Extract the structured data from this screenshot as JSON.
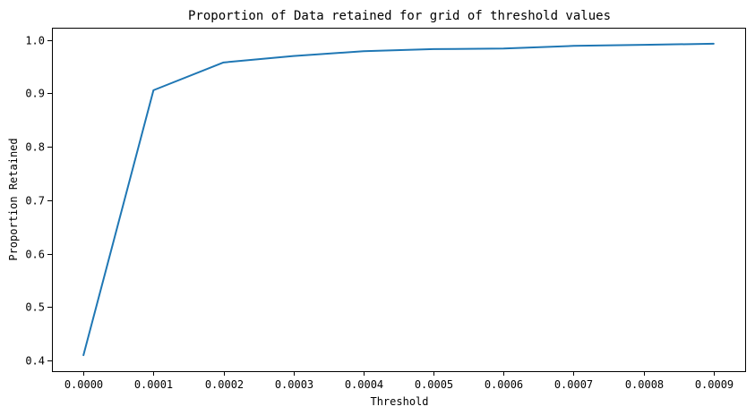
{
  "chart_data": {
    "type": "line",
    "title": "Proportion of Data retained for grid of threshold values",
    "xlabel": "Threshold",
    "ylabel": "Proportion Retained",
    "x": [
      0.0,
      0.0001,
      0.0002,
      0.0003,
      0.0004,
      0.0005,
      0.0006,
      0.0007,
      0.0008,
      0.0009
    ],
    "x_tick_labels": [
      "0.0000",
      "0.0001",
      "0.0002",
      "0.0003",
      "0.0004",
      "0.0005",
      "0.0006",
      "0.0007",
      "0.0008",
      "0.0009"
    ],
    "y_ticks": [
      0.4,
      0.5,
      0.6,
      0.7,
      0.8,
      0.9,
      1.0
    ],
    "y_tick_labels": [
      "0.4",
      "0.5",
      "0.6",
      "0.7",
      "0.8",
      "0.9",
      "1.0"
    ],
    "xlim": [
      -4.5e-05,
      0.000945
    ],
    "ylim": [
      0.38,
      1.023
    ],
    "grid": false,
    "series": [
      {
        "values": [
          0.41,
          0.906,
          0.958,
          0.97,
          0.979,
          0.983,
          0.984,
          0.989,
          0.991,
          0.993
        ],
        "color": "#1f77b4"
      }
    ]
  }
}
